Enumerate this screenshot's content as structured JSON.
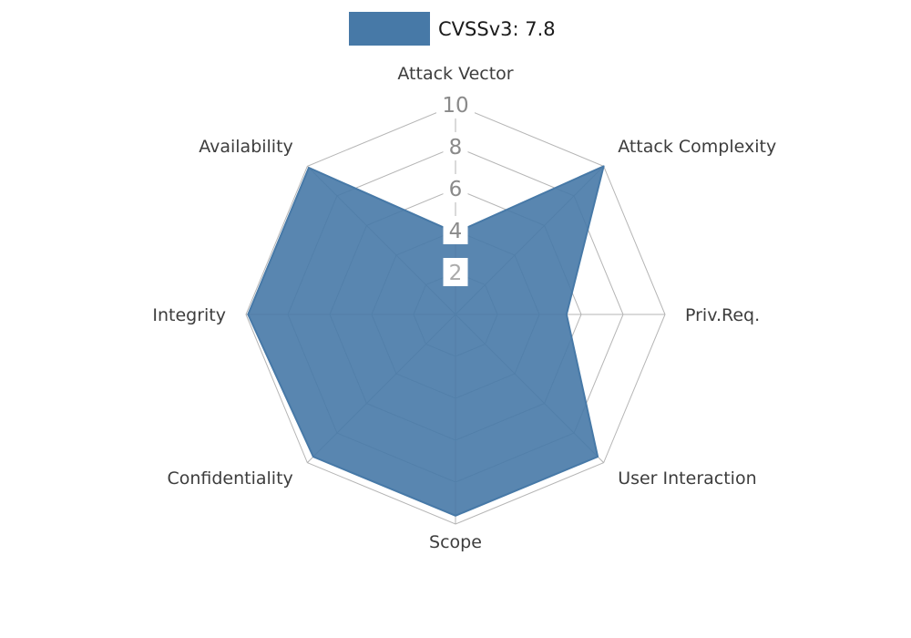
{
  "legend": {
    "label": "CVSSv3: 7.8"
  },
  "chart_data": {
    "type": "radar",
    "title": "CVSSv3: 7.8",
    "axes": [
      "Attack Vector",
      "Attack Complexity",
      "Priv.Req.",
      "User Interaction",
      "Scope",
      "Confidentiality",
      "Integrity",
      "Availability"
    ],
    "series": [
      {
        "name": "CVSSv3: 7.8",
        "values": [
          3.9,
          10,
          5.3,
          9.6,
          9.6,
          9.6,
          9.9,
          9.9
        ],
        "color": "#4779A7"
      }
    ],
    "radial_ticks": [
      2,
      4,
      6,
      8,
      10
    ],
    "max": 10,
    "grid": true,
    "legend_position": "top-center"
  },
  "colors": {
    "background": "#ffffff",
    "grid": "#b5b5b5",
    "axis_label": "#3d3d3d",
    "tick_label": "#8a8a8a",
    "tick_label_faint": "#aaaaaa",
    "series_fill": "#4779A7"
  }
}
